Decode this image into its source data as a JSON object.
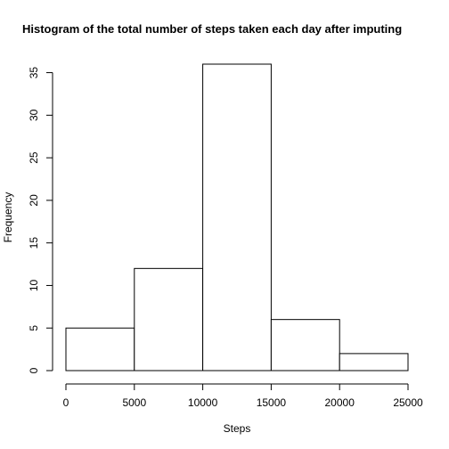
{
  "chart_data": {
    "type": "bar",
    "title": "Histogram of the total number of steps taken each day after imputing",
    "xlabel": "Steps",
    "ylabel": "Frequency",
    "bins": [
      {
        "from": 0,
        "to": 5000,
        "count": 5
      },
      {
        "from": 5000,
        "to": 10000,
        "count": 12
      },
      {
        "from": 10000,
        "to": 15000,
        "count": 36
      },
      {
        "from": 15000,
        "to": 20000,
        "count": 6
      },
      {
        "from": 20000,
        "to": 25000,
        "count": 2
      }
    ],
    "xlim": [
      0,
      25000
    ],
    "ylim": [
      0,
      36
    ],
    "x_ticks": [
      0,
      5000,
      10000,
      15000,
      20000,
      25000
    ],
    "y_ticks": [
      0,
      5,
      10,
      15,
      20,
      25,
      30,
      35
    ],
    "bar_fill": "#ffffff",
    "bar_stroke": "#000000",
    "grid": false
  }
}
